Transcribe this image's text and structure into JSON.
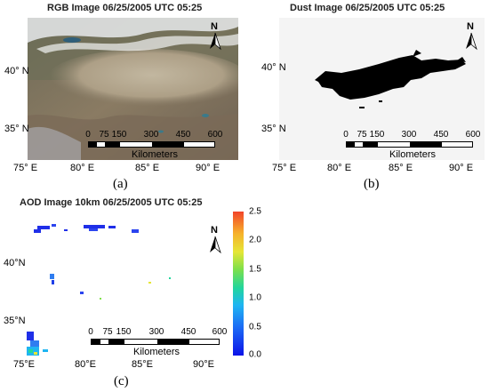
{
  "panel_a": {
    "title": "RGB Image 06/25/2005 UTC 05:25",
    "caption": "(a)",
    "lat_labels": [
      "40° N",
      "35° N"
    ],
    "lon_labels": [
      "75° E",
      "80° E",
      "85° E",
      "90° E"
    ]
  },
  "panel_b": {
    "title": "Dust Image 06/25/2005 UTC 05:25",
    "caption": "(b)",
    "lat_labels": [
      "40° N",
      "35° N"
    ],
    "lon_labels": [
      "75° E",
      "80° E",
      "85° E",
      "90° E"
    ]
  },
  "panel_c": {
    "title": "AOD Image 10km 06/25/2005 UTC 05:25",
    "caption": "(c)",
    "lat_labels": [
      "40°N",
      "35°N"
    ],
    "lon_labels": [
      "75°E",
      "80°E",
      "85°E",
      "90°E"
    ],
    "colorbar_ticks": [
      "2.5",
      "2.0",
      "1.5",
      "1.0",
      "0.5",
      "0.0"
    ],
    "colorbar_colors": [
      "#0b12e8",
      "#1fb5f2",
      "#7fe04a",
      "#e6e636",
      "#f2442a"
    ]
  },
  "north_label": "N",
  "scalebar": {
    "ticks": [
      "0",
      "75",
      "150",
      "300",
      "450",
      "600"
    ],
    "unit": "Kilometers"
  }
}
